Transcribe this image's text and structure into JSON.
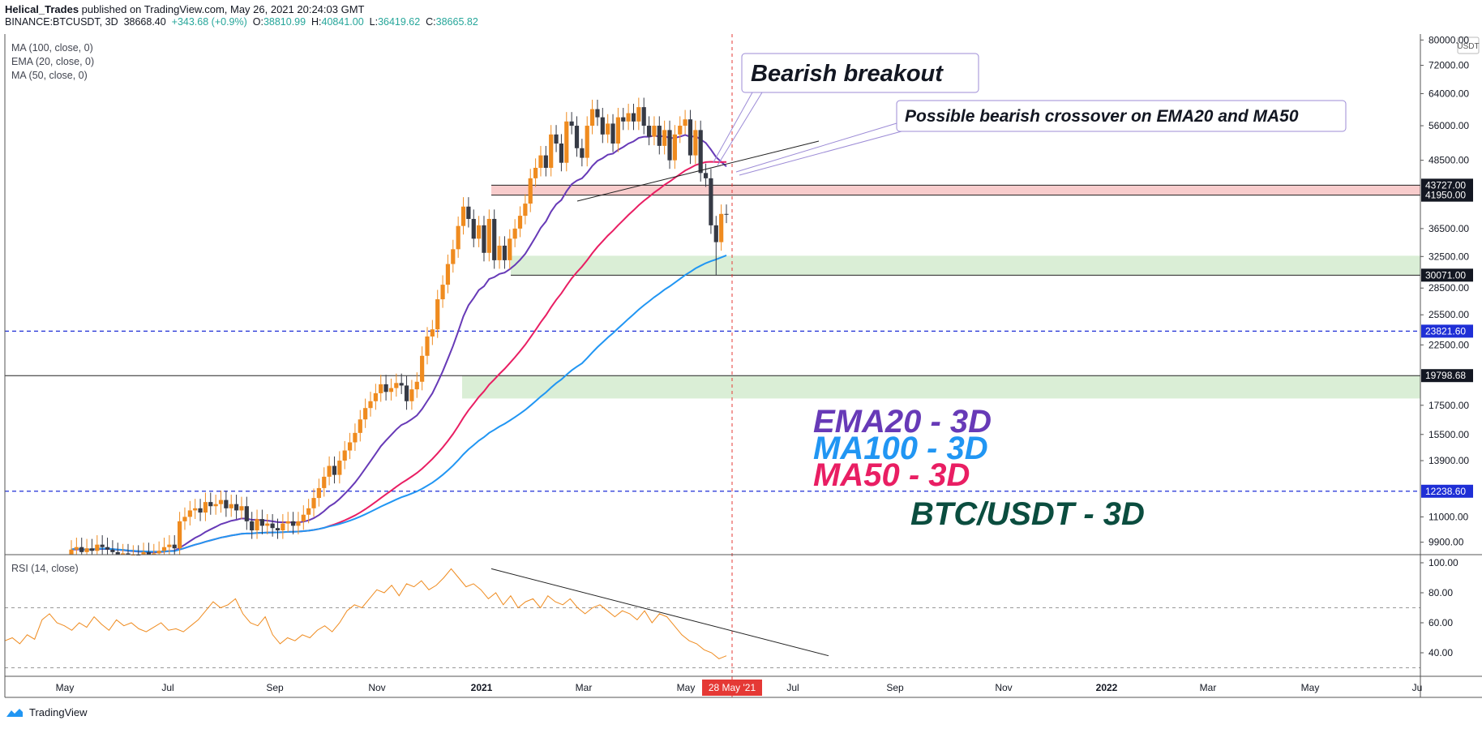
{
  "header": {
    "publisher": "Helical_Trades",
    "published_text": " published on TradingView.com, May 26, 2021 20:24:03 GMT",
    "symbol": "BINANCE:BTCUSDT, 3D",
    "last": "38668.40",
    "change": "+343.68 (+0.9%)",
    "o_label": "O:",
    "o": "38810.99",
    "h_label": "H:",
    "h": "40841.00",
    "l_label": "L:",
    "l": "36419.62",
    "c_label": "C:",
    "c": "38665.82"
  },
  "indicators": {
    "ma100": "MA (100, close, 0)",
    "ema20": "EMA (20, close, 0)",
    "ma50": "MA (50, close, 0)",
    "rsi": "RSI (14, close)"
  },
  "annotations": {
    "bearish_breakout": "Bearish breakout",
    "crossover": "Possible bearish crossover on EMA20 and MA50",
    "ema20_legend": "EMA20 - 3D",
    "ma100_legend": "MA100 - 3D",
    "ma50_legend": "MA50 - 3D",
    "pair_legend": "BTC/USDT - 3D"
  },
  "footer": {
    "brand": "TradingView"
  },
  "colors": {
    "up": "#ef8b1f",
    "down": "#363a45",
    "ema20": "#673ab7",
    "ma50": "#e91e63",
    "ma100": "#2196f3",
    "rsi": "#ef8b1f",
    "red_zone": "#f7c6c6",
    "green_zone": "#d6ecd2",
    "blue_level": "#1f2fd6",
    "pair_text": "#0b4d3f"
  },
  "chart_data": {
    "type": "candlestick",
    "currency": "USDT",
    "scale": "log",
    "ylim": [
      9400,
      82000
    ],
    "price_ticks": [
      "80000.00",
      "72000.00",
      "64000.00",
      "56000.00",
      "48500.00",
      "36500.00",
      "32500.00",
      "28500.00",
      "25500.00",
      "22500.00",
      "17500.00",
      "15500.00",
      "13900.00",
      "11000.00",
      "9900.00"
    ],
    "marked_levels": [
      {
        "label": "43727.00",
        "value": 43727,
        "style": "box"
      },
      {
        "label": "41950.00",
        "value": 41950,
        "style": "box"
      },
      {
        "label": "30071.00",
        "value": 30071,
        "style": "box"
      },
      {
        "label": "23821.60",
        "value": 23821.6,
        "style": "blue"
      },
      {
        "label": "19798.68",
        "value": 19798.68,
        "style": "box"
      },
      {
        "label": "12238.60",
        "value": 12238.6,
        "style": "blue"
      }
    ],
    "zones": [
      {
        "name": "resistance",
        "low": 41950,
        "high": 43727,
        "color": "#f7c6c6"
      },
      {
        "name": "support",
        "low": 30071,
        "high": 32600,
        "color": "#d6ecd2"
      },
      {
        "name": "support2",
        "low": 18000,
        "high": 19798.68,
        "color": "#d6ecd2"
      }
    ],
    "x_ticks": [
      "May",
      "Jul",
      "Sep",
      "Nov",
      "2021",
      "Mar",
      "May",
      "Jul",
      "Sep",
      "Nov",
      "2022",
      "Mar",
      "May",
      "Ju"
    ],
    "cursor_label": "28 May '21",
    "candles_close": [
      9600,
      9700,
      9500,
      9650,
      9550,
      9800,
      9700,
      9600,
      9500,
      9400,
      9450,
      9300,
      9400,
      9350,
      9500,
      9300,
      9450,
      9550,
      9700,
      9800,
      9650,
      10800,
      11000,
      11300,
      11400,
      11200,
      11700,
      11500,
      11600,
      11800,
      11400,
      11600,
      11300,
      11500,
      10800,
      10400,
      10900,
      10600,
      10700,
      10500,
      10400,
      10700,
      10800,
      10600,
      10800,
      11100,
      11400,
      11900,
      12400,
      13000,
      13600,
      13100,
      13900,
      14500,
      15000,
      15600,
      16500,
      17300,
      17800,
      18400,
      19100,
      18500,
      18800,
      19200,
      19000,
      17800,
      18700,
      19300,
      21500,
      23300,
      24000,
      27200,
      28900,
      31500,
      33500,
      36900,
      40000,
      38000,
      35000,
      37000,
      33000,
      38000,
      32000,
      34000,
      32000,
      35000,
      36500,
      38500,
      40500,
      45000,
      47000,
      49500,
      47000,
      54000,
      52000,
      48000,
      57000,
      56000,
      51000,
      49000,
      56000,
      60000,
      58000,
      54000,
      56500,
      52000,
      58000,
      57000,
      59000,
      57000,
      60500,
      56000,
      53500,
      56000,
      51500,
      55000,
      48500,
      54000,
      56000,
      57500,
      49500,
      55000,
      46000,
      45000,
      37000,
      34500,
      38800,
      38700
    ],
    "rsi": {
      "ylim": [
        20,
        100
      ],
      "ticks": [
        "100.00",
        "80.00",
        "60.00",
        "40.00"
      ],
      "values": [
        48,
        50,
        46,
        52,
        49,
        62,
        66,
        60,
        58,
        55,
        60,
        57,
        64,
        59,
        55,
        62,
        58,
        60,
        56,
        54,
        57,
        60,
        55,
        56,
        54,
        58,
        62,
        68,
        74,
        70,
        72,
        76,
        66,
        60,
        58,
        64,
        52,
        46,
        50,
        48,
        52,
        50,
        55,
        58,
        54,
        60,
        68,
        72,
        70,
        76,
        82,
        80,
        85,
        78,
        86,
        84,
        88,
        82,
        85,
        90,
        96,
        90,
        84,
        86,
        82,
        76,
        80,
        72,
        78,
        70,
        74,
        76,
        70,
        78,
        74,
        72,
        76,
        70,
        66,
        70,
        72,
        68,
        64,
        68,
        66,
        62,
        68,
        60,
        66,
        64,
        58,
        52,
        48,
        46,
        42,
        40,
        36,
        38
      ]
    }
  }
}
